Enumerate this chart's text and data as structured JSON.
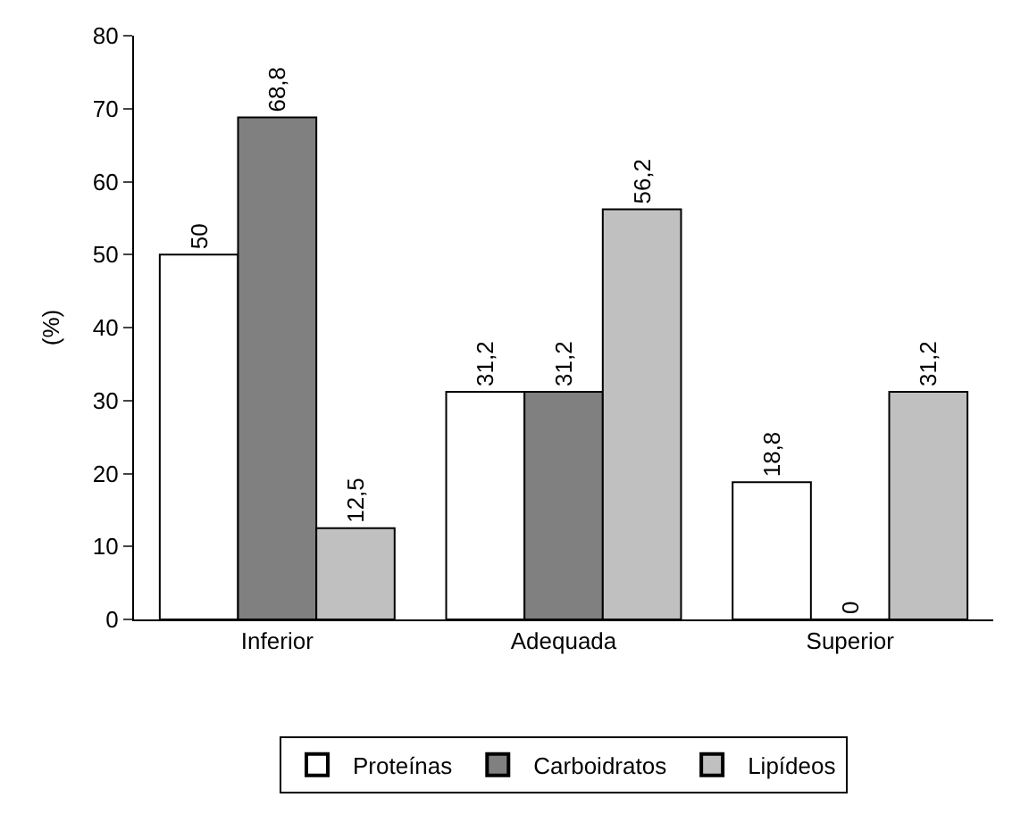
{
  "chart_data": {
    "type": "bar",
    "ylabel": "(%)",
    "categories": [
      "Inferior",
      "Adequada",
      "Superior"
    ],
    "series": [
      {
        "name": "Proteínas",
        "color": "#ffffff",
        "values": [
          50,
          31.2,
          18.8
        ],
        "value_labels": [
          "50",
          "31,2",
          "18,8"
        ]
      },
      {
        "name": "Carboidratos",
        "color": "#808080",
        "values": [
          68.8,
          31.2,
          0
        ],
        "value_labels": [
          "68,8",
          "31,2",
          "0"
        ]
      },
      {
        "name": "Lipídeos",
        "color": "#c0c0c0",
        "values": [
          12.5,
          56.2,
          31.2
        ],
        "value_labels": [
          "12,5",
          "56,2",
          "31,2"
        ]
      }
    ],
    "ylim": [
      0,
      80
    ],
    "yticks": [
      0,
      10,
      20,
      30,
      40,
      50,
      60,
      70,
      80
    ],
    "legend": "bottom"
  }
}
